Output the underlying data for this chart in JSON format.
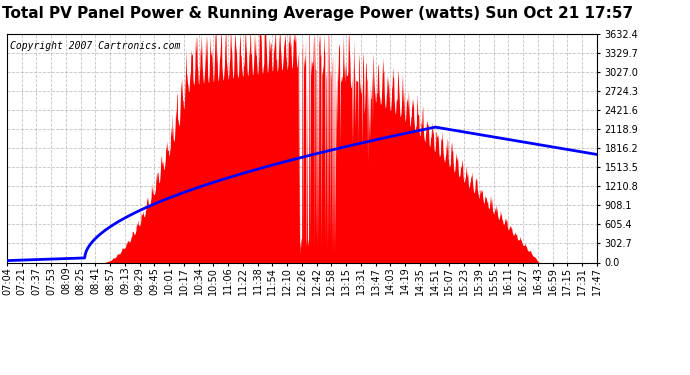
{
  "title": "Total PV Panel Power & Running Average Power (watts) Sun Oct 21 17:57",
  "copyright": "Copyright 2007 Cartronics.com",
  "y_max": 3632.4,
  "y_min": 0.0,
  "y_ticks": [
    0.0,
    302.7,
    605.4,
    908.1,
    1210.8,
    1513.5,
    1816.2,
    2118.9,
    2421.6,
    2724.3,
    3027.0,
    3329.7,
    3632.4
  ],
  "x_labels": [
    "07:04",
    "07:21",
    "07:37",
    "07:53",
    "08:09",
    "08:25",
    "08:41",
    "08:57",
    "09:13",
    "09:29",
    "09:45",
    "10:01",
    "10:17",
    "10:34",
    "10:50",
    "11:06",
    "11:22",
    "11:38",
    "11:54",
    "12:10",
    "12:26",
    "12:42",
    "12:58",
    "13:15",
    "13:31",
    "13:47",
    "14:03",
    "14:19",
    "14:35",
    "14:51",
    "15:07",
    "15:23",
    "15:39",
    "15:55",
    "16:11",
    "16:27",
    "16:43",
    "16:59",
    "17:15",
    "17:31",
    "17:47"
  ],
  "area_color": "#FF0000",
  "line_color": "#0000FF",
  "background_color": "#FFFFFF",
  "grid_color": "#AAAAAA",
  "title_fontsize": 11,
  "copyright_fontsize": 7,
  "tick_fontsize": 7,
  "line_width": 2.0,
  "total_minutes": 643
}
